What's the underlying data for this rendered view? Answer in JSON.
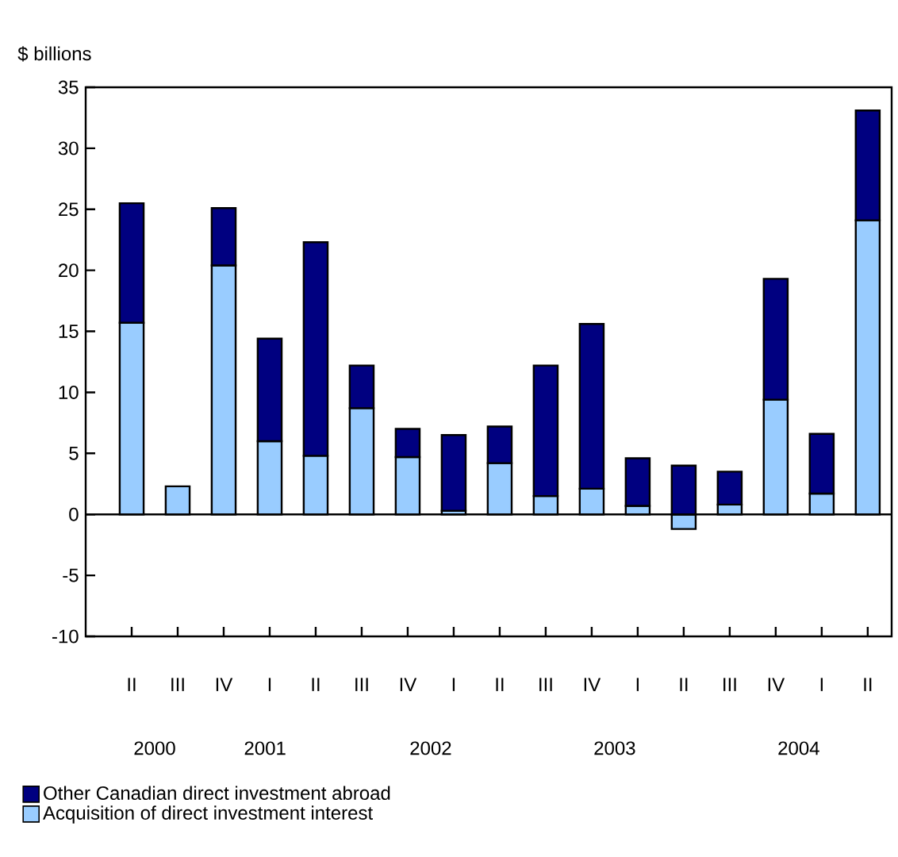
{
  "chart_data": {
    "type": "bar",
    "stacked": true,
    "ylabel": "$ billions",
    "categories": [
      "II",
      "III",
      "IV",
      "I",
      "II",
      "III",
      "IV",
      "I",
      "II",
      "III",
      "IV",
      "I",
      "II",
      "III",
      "IV",
      "I",
      "II"
    ],
    "series": [
      {
        "name": "Acquisition of direct investment interest",
        "color": "#99ccff",
        "values": [
          15.7,
          2.3,
          20.4,
          6.0,
          4.8,
          8.7,
          4.7,
          0.3,
          4.2,
          1.5,
          2.1,
          0.7,
          -1.2,
          0.8,
          9.4,
          1.7,
          24.1
        ]
      },
      {
        "name": "Other Canadian direct investment abroad",
        "color": "#000080",
        "values": [
          9.8,
          0,
          4.7,
          8.4,
          17.5,
          3.5,
          2.3,
          6.2,
          3.0,
          10.7,
          13.5,
          3.9,
          4.0,
          2.7,
          9.9,
          4.9,
          9.0
        ]
      }
    ],
    "annotations": [
      "2000",
      "2001",
      "2002",
      "2003",
      "2004"
    ],
    "ylim": [
      -10,
      35
    ],
    "yticks": [
      -10,
      -5,
      0,
      5,
      10,
      15,
      20,
      25,
      30,
      35
    ],
    "ref_lines": [
      {
        "axis": "y",
        "value": 0,
        "color": "#000000"
      }
    ],
    "legend": "bottom"
  }
}
